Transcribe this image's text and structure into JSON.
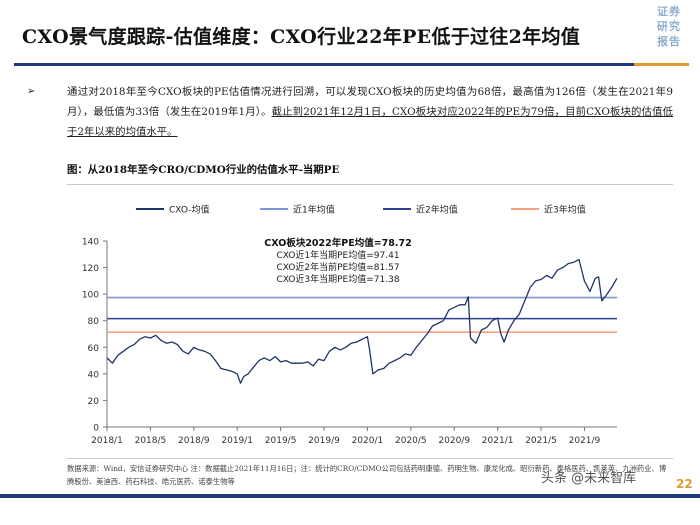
{
  "header": {
    "title": "CXO景气度跟踪-估值维度：CXO行业22年PE低于过往2年均值",
    "stamp": [
      "证券",
      "研究",
      "报告"
    ]
  },
  "bullet": {
    "marker": "➢",
    "text_plain": "通过对2018年至今CXO板块的PE估值情况进行回溯，可以发现CXO板块的历史均值为68倍，最高值为126倍（发生在2021年9月），最低值为33倍（发生在2019年1月）。",
    "text_underlined": "截止到2021年12月1日，CXO板块对应2022年的PE为79倍，目前CXO板块的估值低于2年以来的均值水平。"
  },
  "figure_caption": "图：从2018年至今CRO/CDMO行业的估值水平-当期PE",
  "source_note": "数据来源：Wind，安信证券研究中心    注：数据截止2021年11月16日；注：统计的CRO/CDMO公司包括药明康德、药明生物、康龙化成、昭衍新药、泰格医药、凯莱英、九洲药业、博腾股份、美迪西、药石科技、皓元医药、诺泰生物等",
  "watermark": "头条 @未来智库",
  "page_number": "22",
  "chart_data": {
    "type": "line",
    "title": "",
    "xlabel": "",
    "ylabel": "",
    "ylim": [
      0,
      140
    ],
    "yticks": [
      0,
      20,
      40,
      60,
      80,
      100,
      120,
      140
    ],
    "x_tick_labels": [
      "2018/1",
      "2018/5",
      "2018/9",
      "2019/1",
      "2019/5",
      "2019/9",
      "2020/1",
      "2020/5",
      "2020/9",
      "2021/1",
      "2021/5",
      "2021/9"
    ],
    "x_range_months": [
      0,
      47
    ],
    "legend": {
      "position": "top",
      "entries": [
        "CXO-均值",
        "近1年均值",
        "近2年均值",
        "近3年均值"
      ]
    },
    "annotation": {
      "headline": "CXO板块2022年PE均值=78.72",
      "lines": [
        "CXO近1年当期PE均值=97.41",
        "CXO近2年当前PE均值=81.57",
        "CXO近3年当期PE均值=71.38"
      ]
    },
    "colors": {
      "series": "#1f3466",
      "avg1y": "#7f93d6",
      "avg2y": "#2b3f8c",
      "avg3y": "#f4a07c",
      "axis": "#777777"
    },
    "reference_lines": [
      {
        "name": "近1年均值",
        "value": 97.41
      },
      {
        "name": "近2年均值",
        "value": 81.57
      },
      {
        "name": "近3年均值",
        "value": 71.38
      }
    ],
    "series": [
      {
        "name": "CXO-均值",
        "x_months": [
          0,
          0.5,
          1,
          1.5,
          2,
          2.5,
          3,
          3.5,
          4,
          4.5,
          5,
          5.5,
          6,
          6.5,
          7,
          7.5,
          8,
          8.5,
          9,
          9.5,
          10,
          10.5,
          11,
          11.5,
          12,
          12.3,
          12.6,
          13,
          13.5,
          14,
          14.5,
          15,
          15.5,
          16,
          16.5,
          17,
          17.5,
          18,
          18.5,
          19,
          19.5,
          20,
          20.5,
          21,
          21.5,
          22,
          22.5,
          23,
          23.5,
          24,
          24.2,
          24.5,
          25,
          25.5,
          26,
          26.5,
          27,
          27.5,
          28,
          28.5,
          29,
          29.5,
          30,
          30.5,
          31,
          31.5,
          32,
          32.5,
          33,
          33.3,
          33.5,
          34,
          34.5,
          35,
          35.5,
          36,
          36.3,
          36.6,
          37,
          37.5,
          38,
          38.5,
          39,
          39.5,
          40,
          40.5,
          41,
          41.5,
          42,
          42.5,
          43,
          43.5,
          44,
          44.5,
          45,
          45.3,
          45.6,
          46,
          46.5,
          47
        ],
        "values": [
          52,
          48,
          54,
          57,
          60,
          62,
          66,
          68,
          67,
          69,
          65,
          63,
          64,
          62,
          57,
          55,
          60,
          58,
          57,
          55,
          50,
          44,
          43,
          42,
          40,
          33,
          38,
          40,
          45,
          50,
          52,
          50,
          53,
          49,
          50,
          48,
          48,
          48,
          49,
          46,
          51,
          50,
          57,
          60,
          58,
          60,
          63,
          64,
          66,
          68,
          58,
          40,
          43,
          44,
          48,
          50,
          52,
          55,
          54,
          60,
          65,
          70,
          76,
          78,
          80,
          88,
          90,
          92,
          92,
          98,
          67,
          63,
          73,
          75,
          80,
          82,
          70,
          64,
          73,
          80,
          85,
          95,
          105,
          110,
          111,
          114,
          112,
          118,
          120,
          123,
          124,
          126,
          110,
          102,
          112,
          113,
          95,
          99,
          105,
          112
        ]
      }
    ]
  }
}
